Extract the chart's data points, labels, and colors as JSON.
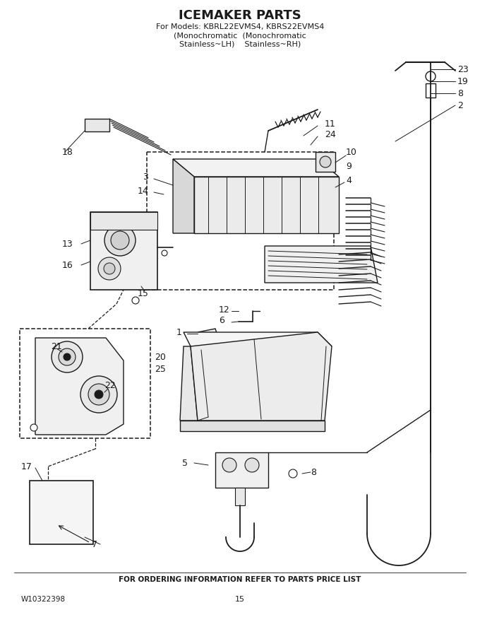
{
  "title": "ICEMAKER PARTS",
  "subtitle_line1": "For Models: KBRL22EVMS4, KBRS22EVMS4",
  "subtitle_line2": "(Monochromatic  (Monochromatic",
  "subtitle_line3": "Stainless~LH)    Stainless~RH)",
  "footer_left": "W10322398",
  "footer_center": "15",
  "footer_bottom": "FOR ORDERING INFORMATION REFER TO PARTS PRICE LIST",
  "bg_color": "#ffffff",
  "line_color": "#1a1a1a",
  "title_fontsize": 13,
  "subtitle_fontsize": 8,
  "label_fontsize": 9
}
